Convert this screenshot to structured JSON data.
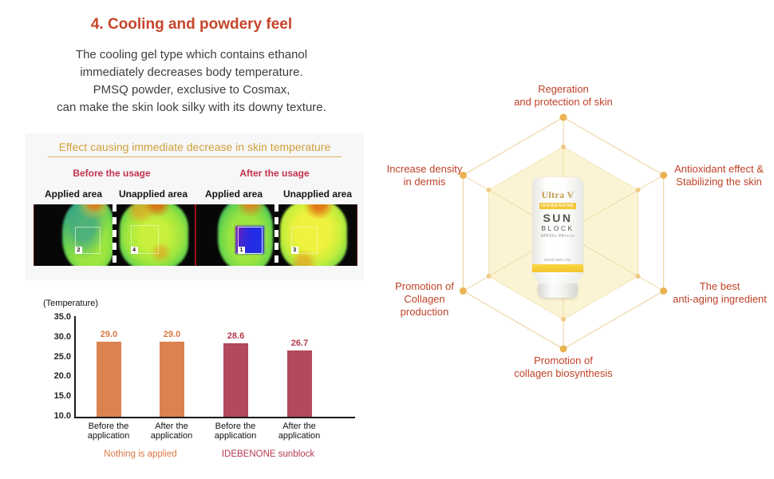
{
  "colors": {
    "title": "#C6452B",
    "body_text": "#3D3D3D",
    "panel_heading": "#D0A03C",
    "usage_label": "#C23350",
    "radar_label": "#BE4127",
    "hex_line": "#EDD7A4",
    "hex_dot": "#E9B252",
    "hex_fill": "#FBF4D4"
  },
  "header": {
    "title": "4. Cooling and powdery feel",
    "description_lines": [
      "The cooling gel type which contains ethanol",
      "immediately decreases body temperature.",
      "PMSQ powder, exclusive to Cosmax,",
      "can make the skin look silky with its downy texture."
    ]
  },
  "thermal": {
    "heading": "Effect causing immediate decrease in skin temperature",
    "usage_labels": [
      "Before the usage",
      "After the usage"
    ],
    "area_labels": [
      "Applied area",
      "Unapplied area",
      "Applied area",
      "Unapplied area"
    ],
    "markers": [
      "2",
      "4",
      "1",
      "3"
    ]
  },
  "chart_data": {
    "type": "bar",
    "title": "(Temperature)",
    "categories": [
      "Before the application",
      "After the application",
      "Before the application",
      "After the application"
    ],
    "values": [
      29.0,
      29.0,
      28.6,
      26.7
    ],
    "value_labels": [
      "29.0",
      "29.0",
      "28.6",
      "26.7"
    ],
    "bar_colors": [
      "#DB8251",
      "#DB8251",
      "#B24A5B",
      "#B24A5B"
    ],
    "value_label_colors": [
      "#DB7743",
      "#DB7743",
      "#B43A4E",
      "#B43A4E"
    ],
    "y_tick_labels": [
      "35.0",
      "30.0",
      "25.0",
      "20.0",
      "15.0",
      "10.0"
    ],
    "ylim": [
      10.0,
      35.0
    ],
    "grid": false,
    "group_labels": [
      {
        "text": "Nothing is applied",
        "color": "#DB7743"
      },
      {
        "text": "IDEBENONE sunblock",
        "color": "#B43A4E"
      }
    ]
  },
  "radar": {
    "labels": {
      "top": [
        "Regeration",
        "and protection of skin"
      ],
      "upper_left": [
        "Increase density",
        "in dermis"
      ],
      "upper_right": [
        "Antioxidant effect &",
        "Stabilizing the skin"
      ],
      "lower_left": [
        "Promotion of",
        "Collagen production"
      ],
      "lower_right": [
        "The best",
        "anti-aging ingredient"
      ],
      "bottom": [
        "Promotion of",
        "collagen biosynthesis"
      ]
    }
  },
  "product": {
    "brand": "Ultra V",
    "badge": "IDEBENONE",
    "name_line1": "SUN",
    "name_line2": "BLOCK",
    "spf": "SPF50+ PA++++",
    "volume": "50ml/1.69FL.OZ."
  }
}
